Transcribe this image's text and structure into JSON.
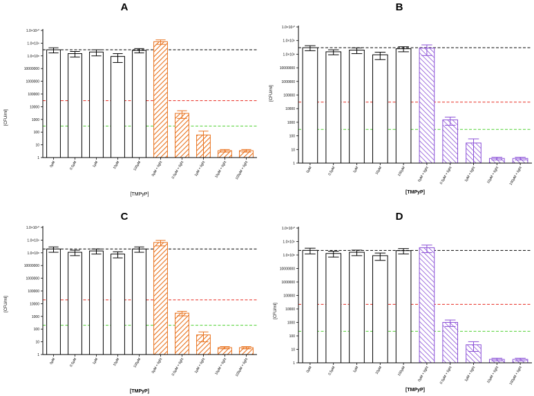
{
  "colors": {
    "orange": "#e8711c",
    "purple": "#8a4fd6",
    "black": "#000000",
    "ref_top": "#000000",
    "ref_mid": "#e8281e",
    "ref_low": "#4fd130"
  },
  "chart_data": [
    {
      "type": "bar",
      "title": "A",
      "xlabel": "[TMPyP]",
      "ylabel": "[CFU/ml]",
      "yscale": "log",
      "ylim": [
        1,
        10000000000.0
      ],
      "grid": false,
      "yticks": [
        {
          "value": 10000000000.0,
          "label": "1.0×10¹⁰"
        },
        {
          "value": 1000000000.0,
          "label": "1.0×10⁹"
        },
        {
          "value": 100000000.0,
          "label": "1.0×10⁸"
        },
        {
          "value": 10000000.0,
          "label": "10000000"
        },
        {
          "value": 1000000.0,
          "label": "1000000"
        },
        {
          "value": 100000.0,
          "label": "100000"
        },
        {
          "value": 10000.0,
          "label": "10000"
        },
        {
          "value": 1000.0,
          "label": "1000"
        },
        {
          "value": 100.0,
          "label": "100"
        },
        {
          "value": 10.0,
          "label": "10"
        },
        {
          "value": 1,
          "label": "1"
        }
      ],
      "categories": [
        "0µM",
        "0.5µM",
        "1µM",
        "10µM",
        "100µM",
        "0µM + light",
        "0.5µM + light",
        "1µM + light",
        "10µM + light",
        "100µM + light"
      ],
      "values": [
        300000000,
        150000000,
        200000000,
        90000000,
        270000000,
        1300000000,
        3000,
        60,
        3.5,
        3.5
      ],
      "errors": [
        130000000,
        70000000,
        100000000,
        60000000,
        100000000,
        500000000,
        1800,
        60,
        0.8,
        0.8
      ],
      "bar_style": [
        "open",
        "open",
        "open",
        "open",
        "open",
        "orange-hatch",
        "orange-hatch",
        "orange-hatch",
        "orange-hatch",
        "orange-hatch"
      ],
      "reference_lines": [
        {
          "value": 300000000,
          "color": "#000000"
        },
        {
          "value": 30000,
          "color": "#e8281e"
        },
        {
          "value": 300,
          "color": "#4fd130"
        }
      ]
    },
    {
      "type": "bar",
      "title": "B",
      "xlabel": "[TMPyP]",
      "ylabel": "[CFU/ml]",
      "yscale": "log",
      "ylim": [
        1,
        10000000000.0
      ],
      "grid": false,
      "yticks": [
        {
          "value": 10000000000.0,
          "label": "1.0×10¹⁰"
        },
        {
          "value": 1000000000.0,
          "label": "1.0×10⁹"
        },
        {
          "value": 100000000.0,
          "label": "1.0×10⁸"
        },
        {
          "value": 10000000.0,
          "label": "10000000"
        },
        {
          "value": 1000000.0,
          "label": "1000000"
        },
        {
          "value": 100000.0,
          "label": "100000"
        },
        {
          "value": 10000.0,
          "label": "10000"
        },
        {
          "value": 1000.0,
          "label": "1000"
        },
        {
          "value": 100.0,
          "label": "100"
        },
        {
          "value": 10.0,
          "label": "10"
        },
        {
          "value": 1,
          "label": "1"
        }
      ],
      "categories": [
        "0µM",
        "0.5µM",
        "1µM",
        "10µM",
        "100µM",
        "0µM + light",
        "0.5µM + light",
        "1µM + light",
        "10µM + light",
        "100µM + light"
      ],
      "values": [
        300000000,
        150000000,
        200000000,
        90000000,
        250000000,
        280000000,
        1500,
        30,
        2.2,
        2.2
      ],
      "errors": [
        120000000,
        60000000,
        90000000,
        50000000,
        100000000,
        200000000,
        900,
        30,
        0.5,
        0.5
      ],
      "bar_style": [
        "open",
        "open",
        "open",
        "open",
        "open",
        "purple-hatch",
        "purple-hatch",
        "purple-hatch",
        "purple-hatch",
        "purple-hatch"
      ],
      "reference_lines": [
        {
          "value": 300000000,
          "color": "#000000"
        },
        {
          "value": 30000,
          "color": "#e8281e"
        },
        {
          "value": 300,
          "color": "#4fd130"
        }
      ]
    },
    {
      "type": "bar",
      "title": "C",
      "xlabel": "[TMPyP]",
      "ylabel": "[CFU/ml]",
      "yscale": "log",
      "ylim": [
        1,
        10000000000.0
      ],
      "grid": false,
      "yticks": [
        {
          "value": 10000000000.0,
          "label": "1.0×10¹⁰"
        },
        {
          "value": 1000000000.0,
          "label": "1.0×10⁹"
        },
        {
          "value": 100000000.0,
          "label": "1.0×10⁸"
        },
        {
          "value": 10000000.0,
          "label": "10000000"
        },
        {
          "value": 1000000.0,
          "label": "1000000"
        },
        {
          "value": 100000.0,
          "label": "100000"
        },
        {
          "value": 10000.0,
          "label": "10000"
        },
        {
          "value": 1000.0,
          "label": "1000"
        },
        {
          "value": 100.0,
          "label": "100"
        },
        {
          "value": 10.0,
          "label": "10"
        },
        {
          "value": 1,
          "label": "1"
        }
      ],
      "categories": [
        "0µM",
        "0.5µM",
        "1µM",
        "10µM",
        "100µM",
        "0µM + light",
        "0.5µM + light",
        "1µM + light",
        "10µM + light",
        "100µM + light"
      ],
      "values": [
        200000000,
        110000000,
        140000000,
        80000000,
        200000000,
        650000000,
        1800,
        35,
        3.5,
        3.5
      ],
      "errors": [
        90000000,
        50000000,
        60000000,
        40000000,
        90000000,
        300000000,
        700,
        25,
        0.7,
        0.7
      ],
      "bar_style": [
        "open",
        "open",
        "open",
        "open",
        "open",
        "orange-hatch",
        "orange-hatch",
        "orange-hatch",
        "orange-hatch",
        "orange-hatch"
      ],
      "reference_lines": [
        {
          "value": 200000000,
          "color": "#000000"
        },
        {
          "value": 20000,
          "color": "#e8281e"
        },
        {
          "value": 200,
          "color": "#4fd130"
        }
      ]
    },
    {
      "type": "bar",
      "title": "D",
      "xlabel": "[TMPyP]",
      "ylabel": "[CFU/ml]",
      "yscale": "log",
      "ylim": [
        1,
        10000000000.0
      ],
      "grid": false,
      "yticks": [
        {
          "value": 10000000000.0,
          "label": "1.0×10¹⁰"
        },
        {
          "value": 1000000000.0,
          "label": "1.0×10⁹"
        },
        {
          "value": 100000000.0,
          "label": "1.0×10⁸"
        },
        {
          "value": 10000000.0,
          "label": "10000000"
        },
        {
          "value": 1000000.0,
          "label": "1000000"
        },
        {
          "value": 100000.0,
          "label": "100000"
        },
        {
          "value": 10000.0,
          "label": "10000"
        },
        {
          "value": 1000.0,
          "label": "1000"
        },
        {
          "value": 100.0,
          "label": "100"
        },
        {
          "value": 10.0,
          "label": "10"
        },
        {
          "value": 1,
          "label": "1"
        }
      ],
      "categories": [
        "0µM",
        "0.5µM",
        "1µM",
        "10µM",
        "100µM",
        "0µM + light",
        "0.5µM + light",
        "1µM + light",
        "10µM + light",
        "100µM + light"
      ],
      "values": [
        220000000,
        130000000,
        160000000,
        90000000,
        210000000,
        350000000,
        1000,
        22,
        1.8,
        1.8
      ],
      "errors": [
        100000000,
        60000000,
        70000000,
        50000000,
        90000000,
        200000000,
        500,
        15,
        0.4,
        0.4
      ],
      "bar_style": [
        "open",
        "open",
        "open",
        "open",
        "open",
        "purple-hatch",
        "purple-hatch",
        "purple-hatch",
        "purple-hatch",
        "purple-hatch"
      ],
      "reference_lines": [
        {
          "value": 220000000,
          "color": "#000000"
        },
        {
          "value": 22000,
          "color": "#e8281e"
        },
        {
          "value": 220,
          "color": "#4fd130"
        }
      ]
    }
  ]
}
